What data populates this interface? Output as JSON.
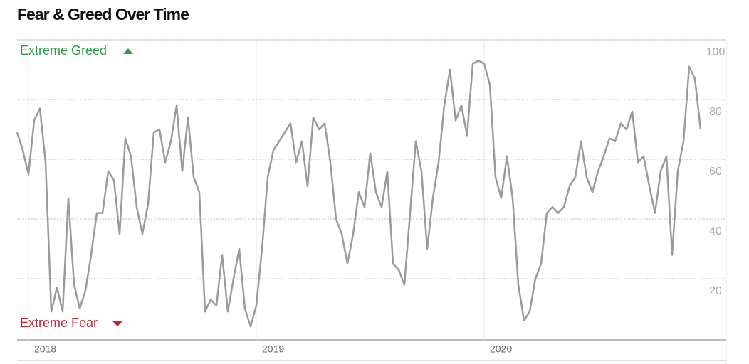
{
  "chart_data": {
    "type": "line",
    "title": "Fear & Greed Over Time",
    "annotations": {
      "top": "Extreme Greed",
      "bottom": "Extreme Fear"
    },
    "categories": [
      null,
      null,
      "2018",
      null,
      null,
      null,
      null,
      null,
      null,
      null,
      null,
      null,
      null,
      null,
      null,
      null,
      null,
      null,
      null,
      null,
      null,
      null,
      null,
      null,
      null,
      null,
      null,
      null,
      null,
      null,
      null,
      null,
      null,
      null,
      null,
      null,
      null,
      null,
      null,
      null,
      null,
      null,
      "2019",
      null,
      null,
      null,
      null,
      null,
      null,
      null,
      null,
      null,
      null,
      null,
      null,
      null,
      null,
      null,
      null,
      null,
      null,
      null,
      null,
      null,
      null,
      null,
      null,
      null,
      null,
      null,
      null,
      null,
      null,
      null,
      null,
      null,
      null,
      null,
      null,
      null,
      null,
      null,
      "2020",
      null,
      null,
      null,
      null,
      null,
      null,
      null,
      null,
      null,
      null,
      null,
      null,
      null,
      null,
      null,
      null,
      null,
      null,
      null,
      null,
      null,
      null,
      null,
      null,
      null,
      null,
      null,
      null,
      null,
      null,
      null,
      null,
      null,
      null,
      null,
      null,
      null,
      null
    ],
    "series": [
      {
        "name": "Fear & Greed",
        "color": "#9a9a9a",
        "values": [
          69,
          63,
          55,
          73,
          77,
          59,
          9,
          17,
          9,
          47,
          18,
          10,
          16,
          28,
          42,
          42,
          56,
          53,
          35,
          67,
          61,
          44,
          35,
          45,
          69,
          70,
          59,
          66,
          78,
          56,
          74,
          54,
          49,
          9,
          13,
          11,
          28,
          9,
          20,
          30,
          10,
          4,
          11,
          30,
          54,
          63,
          66,
          69,
          72,
          59,
          66,
          51,
          74,
          70,
          72,
          59,
          40,
          35,
          25,
          35,
          49,
          44,
          62,
          49,
          44,
          56,
          25,
          23,
          18,
          42,
          66,
          56,
          30,
          47,
          59,
          78,
          90,
          73,
          78,
          68,
          92,
          93,
          92,
          85,
          54,
          47,
          61,
          47,
          18,
          6,
          9,
          20,
          25,
          42,
          44,
          42,
          44,
          51,
          54,
          66,
          54,
          49,
          56,
          61,
          67,
          66,
          72,
          70,
          76,
          59,
          61,
          51,
          42,
          56,
          61,
          28,
          56,
          66,
          91,
          87,
          70
        ]
      }
    ],
    "ylim": [
      0,
      100
    ],
    "yticks": [
      20,
      40,
      60,
      80,
      100
    ],
    "grid": true,
    "greed_color": "#2e9e4a",
    "fear_color": "#c0262d"
  }
}
